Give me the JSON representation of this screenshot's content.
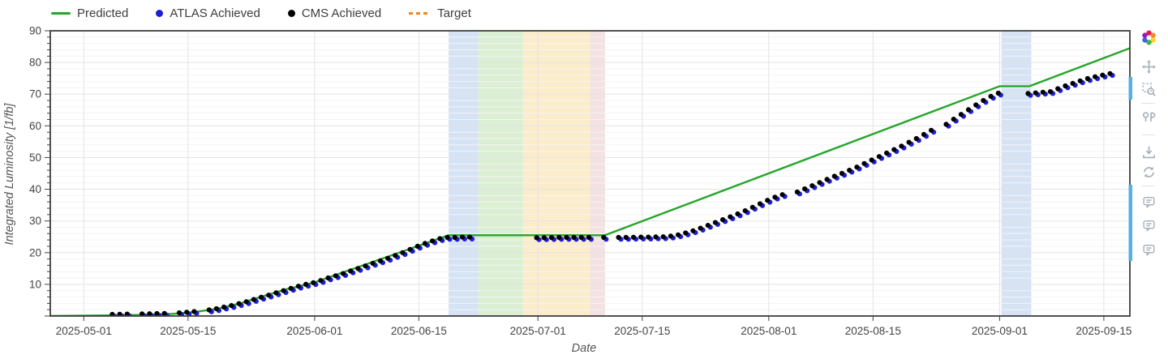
{
  "legend": {
    "items": [
      {
        "label": "Predicted",
        "type": "line",
        "color": "#26a62b"
      },
      {
        "label": "ATLAS Achieved",
        "type": "dot",
        "color": "#1d1dd8"
      },
      {
        "label": "CMS Achieved",
        "type": "dot",
        "color": "#000000"
      },
      {
        "label": "Target",
        "type": "dash",
        "color": "#f58220"
      }
    ]
  },
  "chart_data": {
    "type": "line+scatter",
    "title": "",
    "xlabel": "Date",
    "ylabel": "Integrated Luminosity [1/fb]",
    "x_range": [
      "2025-04-26T12:00:00",
      "2025-09-18T12:00:00"
    ],
    "ylim": [
      0,
      90
    ],
    "y_tick_step": 10,
    "y_minor_step": 2,
    "grid": true,
    "legend_position": "top-left",
    "x_ticks": [
      "2025-05-01",
      "2025-05-15",
      "2025-06-01",
      "2025-06-15",
      "2025-07-01",
      "2025-07-15",
      "2025-08-01",
      "2025-08-15",
      "2025-09-01",
      "2025-09-15"
    ],
    "bands": [
      {
        "name": "stop-blue-june",
        "from": "2025-06-19",
        "to": "2025-06-23",
        "color": "#ccdcf2"
      },
      {
        "name": "stop-green",
        "from": "2025-06-23",
        "to": "2025-06-29",
        "color": "#d2ebc8"
      },
      {
        "name": "stop-amber",
        "from": "2025-06-29",
        "to": "2025-07-08",
        "color": "#fbe8bd"
      },
      {
        "name": "stop-pink",
        "from": "2025-07-08",
        "to": "2025-07-10",
        "color": "#f1d9dc"
      },
      {
        "name": "stop-blue-sept",
        "from": "2025-09-01T06:00:00",
        "to": "2025-09-05T06:00:00",
        "color": "#ccdcf2"
      }
    ],
    "series": [
      {
        "name": "Predicted",
        "type": "line",
        "color": "#26a62b",
        "points": [
          [
            "2025-04-26T12:00:00",
            0.03
          ],
          [
            "2025-05-05",
            0.2
          ],
          [
            "2025-05-10",
            0.4
          ],
          [
            "2025-05-13",
            0.7
          ],
          [
            "2025-05-16",
            1.3
          ],
          [
            "2025-05-19",
            2.3
          ],
          [
            "2025-05-22",
            4.0
          ],
          [
            "2025-05-25",
            6.2
          ],
          [
            "2025-05-28",
            8.3
          ],
          [
            "2025-06-01",
            10.6
          ],
          [
            "2025-06-19",
            25.5
          ],
          [
            "2025-07-10",
            25.5
          ],
          [
            "2025-09-01",
            72.5
          ],
          [
            "2025-09-05",
            72.5
          ],
          [
            "2025-09-18T12:00:00",
            84.5
          ]
        ]
      },
      {
        "name": "ATLAS Achieved",
        "type": "scatter",
        "color": "#1d1dd8",
        "points_ref": "achieved_points",
        "marker_offset": {
          "dx": 1.4,
          "dy": 1.1
        }
      },
      {
        "name": "CMS Achieved",
        "type": "scatter",
        "color": "#000000",
        "points_ref": "achieved_points",
        "marker_offset": {
          "dx": -1.6,
          "dy": -1.2
        }
      },
      {
        "name": "Target",
        "type": "dashed-line",
        "color": "#f58220",
        "visible_in_plot": false,
        "points": []
      }
    ],
    "achieved_points": [
      [
        "2025-05-05",
        0.2
      ],
      [
        "2025-05-06",
        0.25
      ],
      [
        "2025-05-07",
        0.3
      ],
      [
        "2025-05-09",
        0.35
      ],
      [
        "2025-05-10",
        0.4
      ],
      [
        "2025-05-11",
        0.45
      ],
      [
        "2025-05-12",
        0.5
      ],
      [
        "2025-05-14",
        0.7
      ],
      [
        "2025-05-15",
        0.9
      ],
      [
        "2025-05-16",
        1.1
      ],
      [
        "2025-05-18",
        1.6
      ],
      [
        "2025-05-19",
        2.0
      ],
      [
        "2025-05-20",
        2.5
      ],
      [
        "2025-05-21",
        3.0
      ],
      [
        "2025-05-22",
        3.6
      ],
      [
        "2025-05-23",
        4.2
      ],
      [
        "2025-05-24",
        4.9
      ],
      [
        "2025-05-25",
        5.6
      ],
      [
        "2025-05-26",
        6.3
      ],
      [
        "2025-05-27",
        7.0
      ],
      [
        "2025-05-28",
        7.7
      ],
      [
        "2025-05-29",
        8.4
      ],
      [
        "2025-05-30",
        9.1
      ],
      [
        "2025-05-31",
        9.7
      ],
      [
        "2025-06-01",
        10.2
      ],
      [
        "2025-06-02",
        10.9
      ],
      [
        "2025-06-03",
        11.7
      ],
      [
        "2025-06-04",
        12.4
      ],
      [
        "2025-06-05",
        13.1
      ],
      [
        "2025-06-06",
        13.9
      ],
      [
        "2025-06-07",
        14.7
      ],
      [
        "2025-06-08",
        15.5
      ],
      [
        "2025-06-09",
        16.3
      ],
      [
        "2025-06-10",
        17.1
      ],
      [
        "2025-06-11",
        17.9
      ],
      [
        "2025-06-12",
        18.8
      ],
      [
        "2025-06-13",
        19.7
      ],
      [
        "2025-06-14",
        20.7
      ],
      [
        "2025-06-15",
        21.7
      ],
      [
        "2025-06-16",
        22.6
      ],
      [
        "2025-06-17",
        23.4
      ],
      [
        "2025-06-18",
        24.1
      ],
      [
        "2025-06-19",
        24.5
      ],
      [
        "2025-06-20",
        24.5
      ],
      [
        "2025-06-21",
        24.6
      ],
      [
        "2025-06-22",
        24.6
      ],
      [
        "2025-07-01",
        24.4
      ],
      [
        "2025-07-02",
        24.4
      ],
      [
        "2025-07-03",
        24.45
      ],
      [
        "2025-07-04",
        24.5
      ],
      [
        "2025-07-05",
        24.5
      ],
      [
        "2025-07-06",
        24.5
      ],
      [
        "2025-07-07",
        24.5
      ],
      [
        "2025-07-08",
        24.5
      ],
      [
        "2025-07-10",
        24.5
      ],
      [
        "2025-07-12",
        24.5
      ],
      [
        "2025-07-13",
        24.5
      ],
      [
        "2025-07-14",
        24.55
      ],
      [
        "2025-07-15",
        24.6
      ],
      [
        "2025-07-16",
        24.6
      ],
      [
        "2025-07-17",
        24.65
      ],
      [
        "2025-07-18",
        24.7
      ],
      [
        "2025-07-19",
        24.9
      ],
      [
        "2025-07-20",
        25.3
      ],
      [
        "2025-07-21",
        25.9
      ],
      [
        "2025-07-22",
        26.6
      ],
      [
        "2025-07-23",
        27.4
      ],
      [
        "2025-07-24",
        28.3
      ],
      [
        "2025-07-25",
        29.2
      ],
      [
        "2025-07-26",
        30.1
      ],
      [
        "2025-07-27",
        31.0
      ],
      [
        "2025-07-28",
        31.9
      ],
      [
        "2025-07-29",
        32.9
      ],
      [
        "2025-07-30",
        34.0
      ],
      [
        "2025-07-31",
        35.1
      ],
      [
        "2025-08-01",
        36.2
      ],
      [
        "2025-08-02",
        37.2
      ],
      [
        "2025-08-03",
        38.0
      ],
      [
        "2025-08-05",
        38.8
      ],
      [
        "2025-08-06",
        39.8
      ],
      [
        "2025-08-07",
        40.8
      ],
      [
        "2025-08-08",
        41.8
      ],
      [
        "2025-08-09",
        42.8
      ],
      [
        "2025-08-10",
        43.8
      ],
      [
        "2025-08-11",
        44.7
      ],
      [
        "2025-08-12",
        45.7
      ],
      [
        "2025-08-13",
        46.7
      ],
      [
        "2025-08-14",
        47.8
      ],
      [
        "2025-08-15",
        48.9
      ],
      [
        "2025-08-16",
        50.0
      ],
      [
        "2025-08-17",
        51.1
      ],
      [
        "2025-08-18",
        52.2
      ],
      [
        "2025-08-19",
        53.3
      ],
      [
        "2025-08-20",
        54.5
      ],
      [
        "2025-08-21",
        55.7
      ],
      [
        "2025-08-22",
        57.0
      ],
      [
        "2025-08-23",
        58.3
      ],
      [
        "2025-08-25",
        60.2
      ],
      [
        "2025-08-26",
        61.8
      ],
      [
        "2025-08-27",
        63.3
      ],
      [
        "2025-08-28",
        64.8
      ],
      [
        "2025-08-29",
        66.3
      ],
      [
        "2025-08-30",
        67.7
      ],
      [
        "2025-08-31",
        69.0
      ],
      [
        "2025-09-01",
        70.0
      ],
      [
        "2025-09-05",
        69.9
      ],
      [
        "2025-09-06",
        70.1
      ],
      [
        "2025-09-07",
        70.3
      ],
      [
        "2025-09-08",
        70.5
      ],
      [
        "2025-09-09",
        71.4
      ],
      [
        "2025-09-10",
        72.3
      ],
      [
        "2025-09-11",
        73.1
      ],
      [
        "2025-09-12",
        73.9
      ],
      [
        "2025-09-13",
        74.6
      ],
      [
        "2025-09-14",
        75.2
      ],
      [
        "2025-09-15",
        75.7
      ],
      [
        "2025-09-16",
        76.2
      ]
    ]
  },
  "modebar": {
    "accent_color": "#55b1e2",
    "icon_color": "#a7adb8",
    "buttons": [
      {
        "name": "plotly-logo-icon"
      },
      {
        "name": "pan-icon"
      },
      {
        "name": "box-zoom-icon"
      },
      {
        "name": "hover-compare-icon"
      },
      {
        "name": "download-icon"
      },
      {
        "name": "refresh-icon"
      },
      {
        "name": "comment-icon-1"
      },
      {
        "name": "comment-icon-2"
      },
      {
        "name": "comment-icon-3"
      }
    ]
  }
}
